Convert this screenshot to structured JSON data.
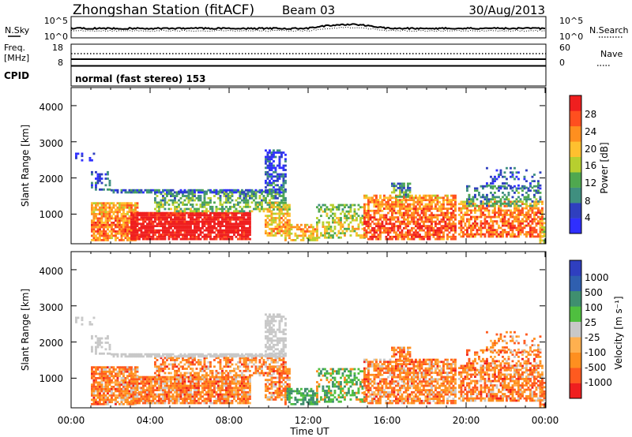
{
  "header": {
    "station": "Zhongshan Station (fitACF)",
    "beam": "Beam 03",
    "date": "30/Aug/2013"
  },
  "noise_panel": {
    "left_label": "N.Sky",
    "left_ticks": [
      "10^5",
      "10^0"
    ],
    "right_label": "N.Search",
    "right_ticks": [
      "10^5",
      "10^0"
    ]
  },
  "freq_panel": {
    "left_label_line1": "Freq.",
    "left_label_line2": "[MHz]",
    "left_ticks": [
      "18",
      "8"
    ],
    "right_label": "Nave",
    "right_ticks": [
      "60",
      "0"
    ]
  },
  "cpid": {
    "label": "CPID",
    "text": "normal (fast stereo) 153"
  },
  "xaxis": {
    "title": "Time UT",
    "tick_labels": [
      "00:00",
      "04:00",
      "08:00",
      "12:00",
      "16:00",
      "20:00",
      "00:00"
    ]
  },
  "colors": {
    "power": [
      "#2f2fff",
      "#2f3fbf",
      "#3f8f7f",
      "#4fa84f",
      "#b7cf2f",
      "#ffc02f",
      "#ff8f1f",
      "#ff4f1f",
      "#ef1f1f"
    ],
    "velocity": [
      "#ef1f1f",
      "#ff5a1f",
      "#ff8f1f",
      "#ffb04f",
      "#c8c8c8",
      "#4fbf3f",
      "#3f8f6f",
      "#2f5faf",
      "#2f3fbf"
    ]
  },
  "chart_data": [
    {
      "type": "heatmap",
      "title": "",
      "xlabel": "Time UT",
      "ylabel": "Slant Range [km]",
      "xlim": [
        "00:00",
        "24:00"
      ],
      "ylim": [
        180,
        4500
      ],
      "y_ticks": [
        "1000",
        "2000",
        "3000",
        "4000"
      ],
      "colorbar": {
        "label": "Power [dB]",
        "ticks": [
          "4",
          "8",
          "12",
          "16",
          "20",
          "24",
          "28"
        ],
        "range": [
          0,
          30
        ]
      }
    },
    {
      "type": "heatmap",
      "title": "",
      "xlabel": "Time UT",
      "ylabel": "Slant Range [km]",
      "xlim": [
        "00:00",
        "24:00"
      ],
      "ylim": [
        180,
        4500
      ],
      "y_ticks": [
        "1000",
        "2000",
        "3000",
        "4000"
      ],
      "colorbar": {
        "label": "Velocity [m s⁻¹]",
        "ticks": [
          "1000",
          "500",
          "100",
          "25",
          "-25",
          "-100",
          "-500",
          "-1000"
        ]
      }
    }
  ]
}
